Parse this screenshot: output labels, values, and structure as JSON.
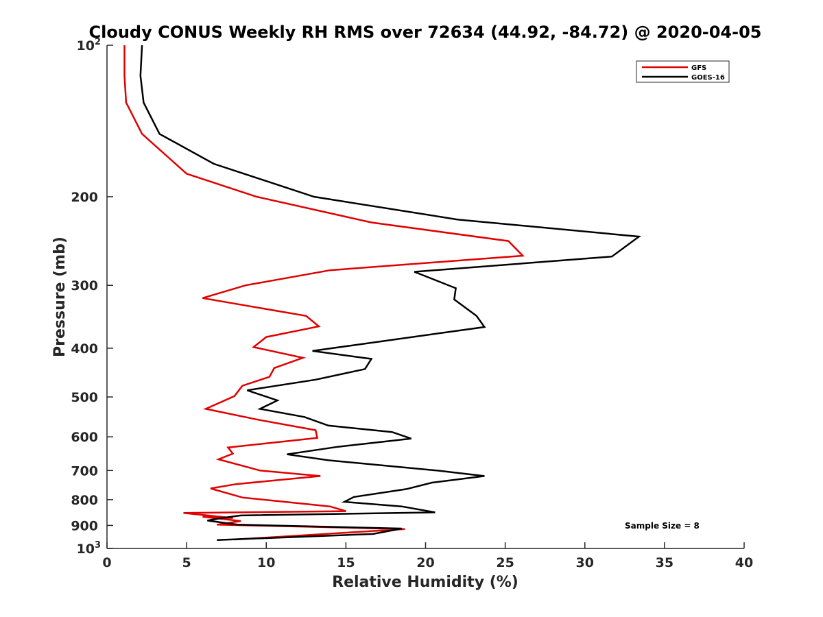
{
  "chart_data": {
    "type": "line",
    "title": "Cloudy CONUS Weekly RH RMS over 72634 (44.92, -84.72) @ 2020-04-05",
    "xlabel": "Relative Humidity (%)",
    "ylabel": "Pressure (mb)",
    "xlim": [
      0,
      40
    ],
    "ylim": [
      100,
      1000
    ],
    "y_scale": "log",
    "y_reversed": true,
    "grid": false,
    "legend_position": "top-right",
    "x_ticks": [
      "0",
      "5",
      "10",
      "15",
      "20",
      "25",
      "30",
      "35",
      "40"
    ],
    "y_ticks": [
      {
        "base": "10",
        "exp": "2",
        "value": 100
      },
      {
        "label": "200",
        "value": 200
      },
      {
        "label": "300",
        "value": 300
      },
      {
        "label": "400",
        "value": 400
      },
      {
        "label": "500",
        "value": 500
      },
      {
        "label": "600",
        "value": 600
      },
      {
        "label": "700",
        "value": 700
      },
      {
        "label": "800",
        "value": 800
      },
      {
        "label": "900",
        "value": 900
      },
      {
        "base": "10",
        "exp": "3",
        "value": 1000
      }
    ],
    "annotation": "Sample Size = 8",
    "series": [
      {
        "name": "GFS",
        "color": "#e00000",
        "points": [
          [
            1.1,
            100
          ],
          [
            1.1,
            115
          ],
          [
            1.2,
            130
          ],
          [
            2.2,
            150
          ],
          [
            5.0,
            180
          ],
          [
            9.4,
            200
          ],
          [
            16.6,
            225
          ],
          [
            25.2,
            245
          ],
          [
            26.1,
            262
          ],
          [
            14.0,
            280
          ],
          [
            8.7,
            300
          ],
          [
            6.0,
            318
          ],
          [
            12.5,
            345
          ],
          [
            13.3,
            362
          ],
          [
            10.0,
            380
          ],
          [
            9.2,
            398
          ],
          [
            12.3,
            418
          ],
          [
            10.5,
            438
          ],
          [
            10.2,
            456
          ],
          [
            8.5,
            475
          ],
          [
            8.0,
            498
          ],
          [
            6.2,
            528
          ],
          [
            9.5,
            555
          ],
          [
            13.1,
            582
          ],
          [
            13.2,
            603
          ],
          [
            7.6,
            630
          ],
          [
            7.9,
            648
          ],
          [
            7.0,
            665
          ],
          [
            9.6,
            700
          ],
          [
            13.4,
            718
          ],
          [
            8.1,
            745
          ],
          [
            6.5,
            760
          ],
          [
            8.5,
            792
          ],
          [
            14.0,
            825
          ],
          [
            15.0,
            843
          ],
          [
            4.8,
            850
          ],
          [
            7.9,
            870
          ],
          [
            6.0,
            865
          ],
          [
            8.4,
            882
          ],
          [
            6.9,
            897
          ],
          [
            18.7,
            915
          ],
          [
            18.0,
            918
          ],
          [
            8.0,
            960
          ]
        ]
      },
      {
        "name": "GOES-16",
        "color": "#000000",
        "points": [
          [
            2.2,
            100
          ],
          [
            2.1,
            115
          ],
          [
            2.3,
            130
          ],
          [
            3.3,
            150
          ],
          [
            6.7,
            172
          ],
          [
            13.0,
            200
          ],
          [
            22.0,
            222
          ],
          [
            33.4,
            240
          ],
          [
            31.7,
            263
          ],
          [
            19.3,
            282
          ],
          [
            21.9,
            304
          ],
          [
            21.8,
            320
          ],
          [
            23.2,
            345
          ],
          [
            23.7,
            363
          ],
          [
            17.9,
            385
          ],
          [
            12.9,
            405
          ],
          [
            16.6,
            420
          ],
          [
            16.2,
            440
          ],
          [
            13.1,
            462
          ],
          [
            8.8,
            485
          ],
          [
            10.7,
            508
          ],
          [
            9.6,
            528
          ],
          [
            12.4,
            548
          ],
          [
            13.9,
            570
          ],
          [
            17.9,
            587
          ],
          [
            19.1,
            605
          ],
          [
            14.5,
            628
          ],
          [
            11.3,
            650
          ],
          [
            13.9,
            668
          ],
          [
            20.7,
            700
          ],
          [
            23.7,
            718
          ],
          [
            20.4,
            740
          ],
          [
            18.8,
            762
          ],
          [
            15.5,
            790
          ],
          [
            14.9,
            808
          ],
          [
            18.5,
            825
          ],
          [
            20.6,
            848
          ],
          [
            8.4,
            860
          ],
          [
            7.2,
            870
          ],
          [
            6.3,
            880
          ],
          [
            8.2,
            897
          ],
          [
            18.5,
            913
          ],
          [
            16.7,
            936
          ],
          [
            6.9,
            962
          ]
        ]
      }
    ]
  }
}
